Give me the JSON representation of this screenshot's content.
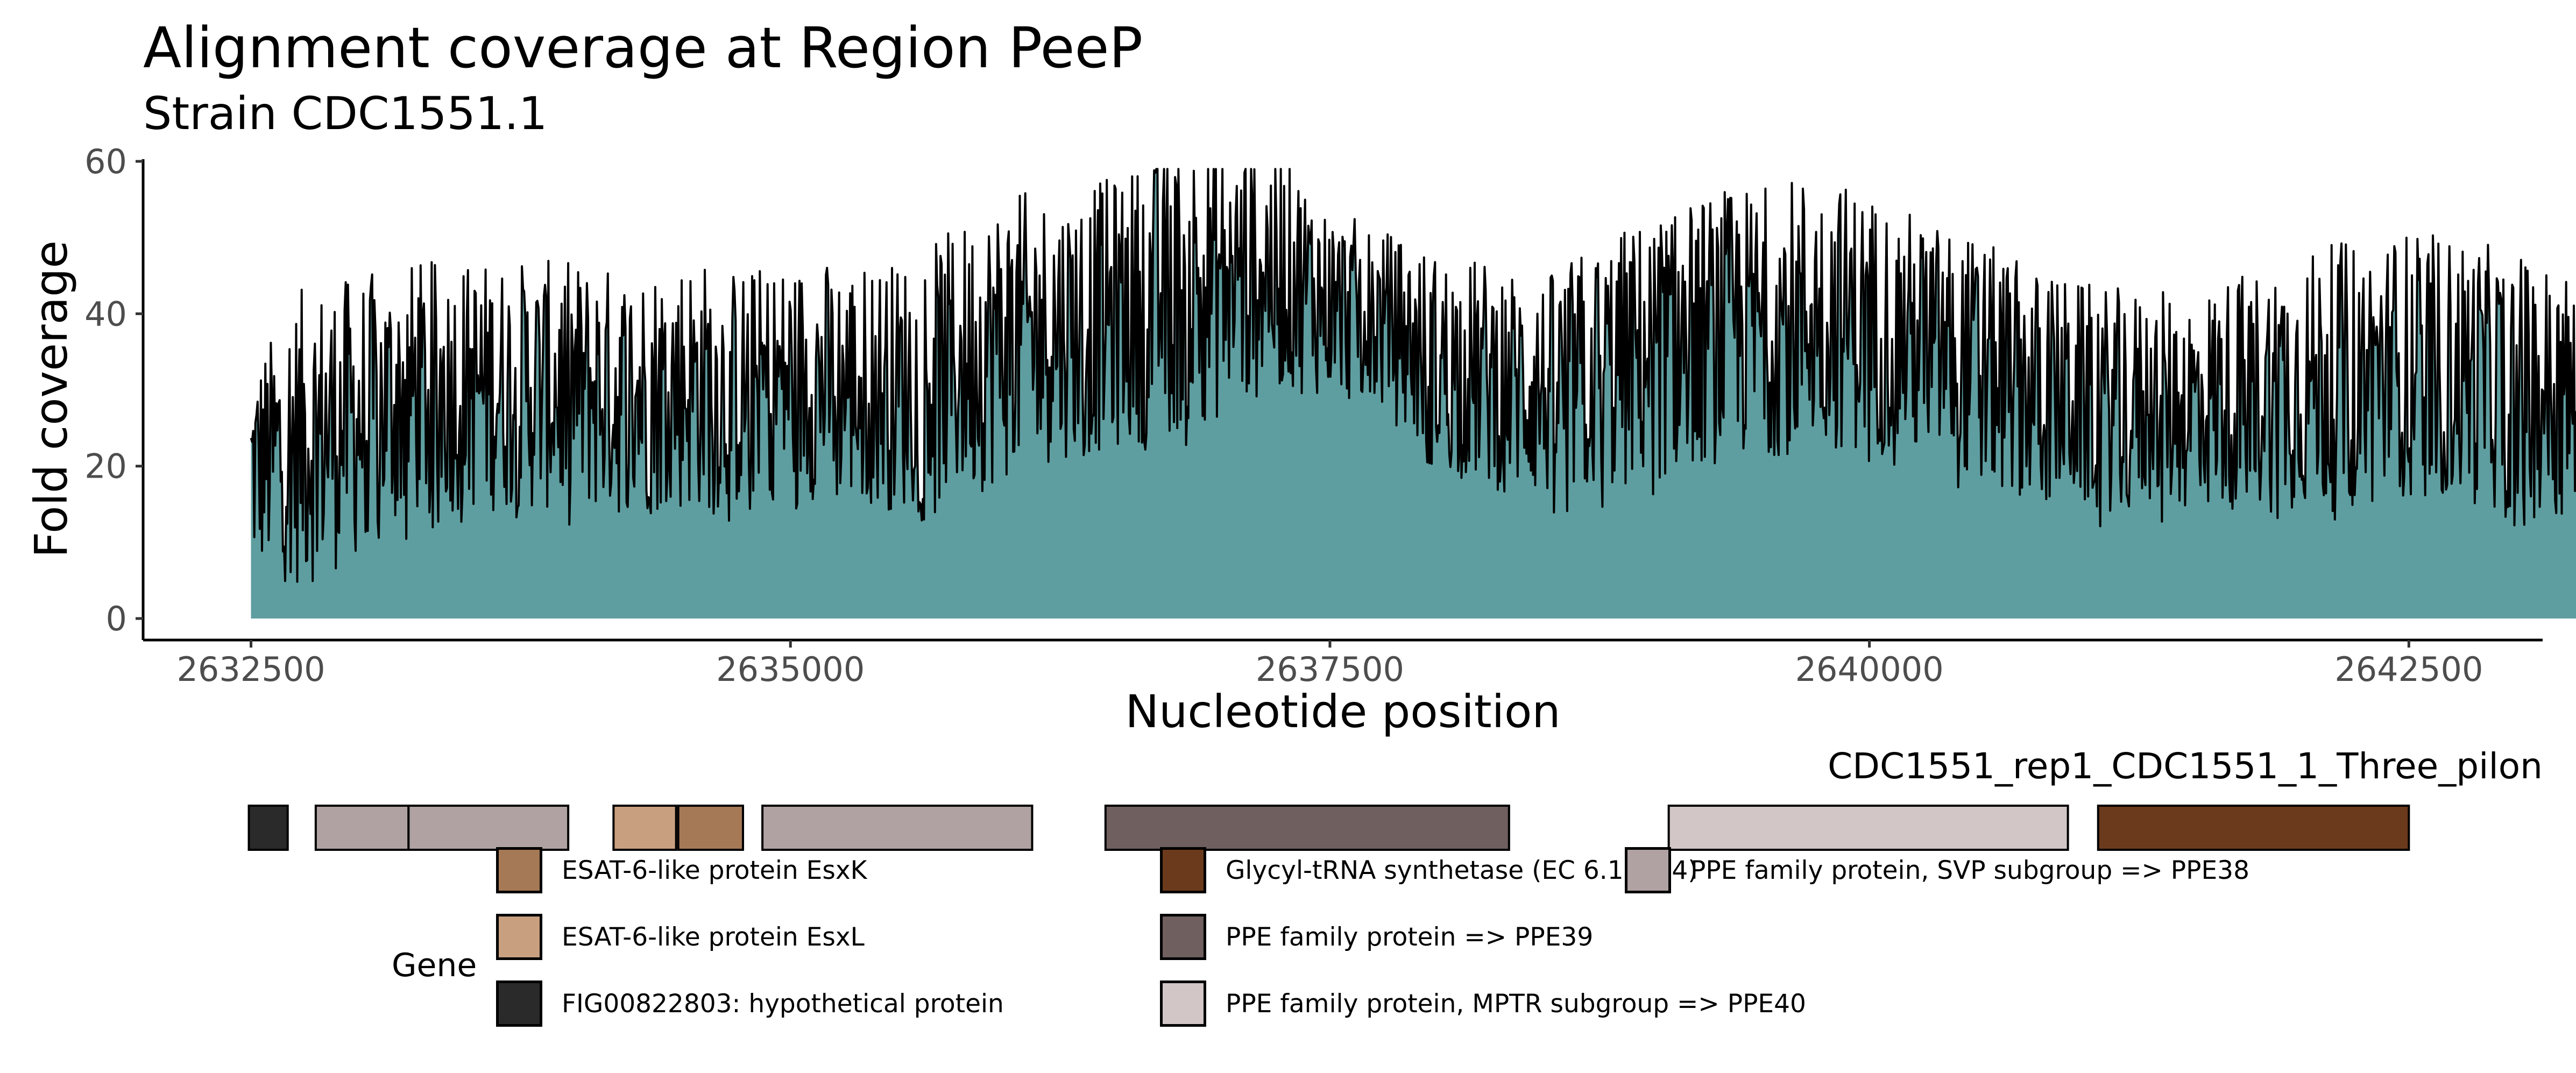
{
  "chart_data": {
    "type": "area",
    "title": "Alignment coverage at Region PeeP",
    "subtitle": "Strain CDC1551.1",
    "xlabel": "Nucleotide position",
    "ylabel": "Fold coverage",
    "xlim": [
      2632000,
      2643120
    ],
    "ylim": [
      0,
      60
    ],
    "x_ticks": [
      "2632500",
      "2635000",
      "2637500",
      "2640000",
      "2642500"
    ],
    "x_tick_values": [
      2632500,
      2635000,
      2637500,
      2640000,
      2642500
    ],
    "y_ticks": [
      "0",
      "20",
      "40",
      "60"
    ],
    "y_tick_values": [
      0,
      20,
      40,
      60
    ],
    "grid": false,
    "area_color": "#5f9ea0",
    "line_color": "#000000",
    "x_start": 2632500,
    "x_step": 250,
    "envelope_low": [
      12,
      10,
      14,
      19,
      20,
      20,
      20,
      19,
      20,
      20,
      22,
      21,
      20,
      21,
      24,
      27,
      28,
      30,
      32,
      36,
      35,
      33,
      25,
      23,
      21,
      21,
      24,
      26,
      27,
      28,
      28,
      26,
      24,
      21,
      20,
      20,
      20,
      20,
      20,
      20,
      22,
      21,
      20,
      17,
      14,
      13,
      13,
      12,
      12,
      12
    ],
    "envelope_high": [
      27,
      38,
      39,
      41,
      41,
      41,
      41,
      40,
      42,
      40,
      41,
      41,
      41,
      45,
      50,
      50,
      52,
      56,
      58,
      57,
      48,
      45,
      42,
      41,
      39,
      44,
      47,
      50,
      51,
      53,
      50,
      47,
      44,
      40,
      38,
      37,
      37,
      40,
      42,
      44,
      45,
      44,
      42,
      40,
      38,
      30,
      27,
      28,
      29,
      28
    ],
    "track_label": "CDC1551_rep1_CDC1551_1_Three_pilon",
    "genes": [
      {
        "start": 2632490,
        "end": 2632670,
        "gene": "FIG00822803: hypothetical protein"
      },
      {
        "start": 2632800,
        "end": 2633230,
        "gene": "PPE family protein, SVP subgroup => PPE38"
      },
      {
        "start": 2633230,
        "end": 2633970,
        "gene": "PPE family protein, SVP subgroup => PPE38"
      },
      {
        "start": 2634180,
        "end": 2634470,
        "gene": "ESAT-6-like protein EsxL"
      },
      {
        "start": 2634480,
        "end": 2634780,
        "gene": "ESAT-6-like protein EsxK"
      },
      {
        "start": 2634870,
        "end": 2636120,
        "gene": "PPE family protein, SVP subgroup => PPE38"
      },
      {
        "start": 2636460,
        "end": 2638330,
        "gene": "PPE family protein => PPE39"
      },
      {
        "start": 2639070,
        "end": 2640920,
        "gene": "PPE family protein, MPTR subgroup => PPE40"
      },
      {
        "start": 2641060,
        "end": 2642500,
        "gene": "Glycyl-tRNA synthetase (EC 6.1.1.14)"
      }
    ],
    "legend_title": "Gene",
    "legend": [
      {
        "label": "ESAT-6-like protein EsxK",
        "color": "#a57955"
      },
      {
        "label": "ESAT-6-like protein EsxL",
        "color": "#c9a07f"
      },
      {
        "label": "FIG00822803: hypothetical protein",
        "color": "#2a2a2a"
      },
      {
        "label": "Glycyl-tRNA synthetase (EC 6.1.1.14)",
        "color": "#6b3a1c"
      },
      {
        "label": "PPE family protein => PPE39",
        "color": "#6f5f5f"
      },
      {
        "label": "PPE family protein, MPTR subgroup => PPE40",
        "color": "#d2c6c6"
      },
      {
        "label": "PPE family protein, SVP subgroup => PPE38",
        "color": "#b0a2a2"
      }
    ]
  }
}
